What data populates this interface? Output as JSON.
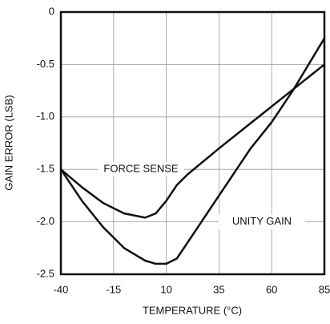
{
  "chart_data": {
    "type": "line",
    "xlabel": "TEMPERATURE (°C)",
    "ylabel": "GAIN ERROR (LSB)",
    "x": [
      -40,
      -30,
      -20,
      -10,
      0,
      5,
      10,
      15,
      20,
      35,
      50,
      60,
      70,
      85
    ],
    "series": [
      {
        "name": "FORCE SENSE",
        "color": "#111111",
        "values": [
          -1.5,
          -1.67,
          -1.82,
          -1.92,
          -1.96,
          -1.92,
          -1.8,
          -1.65,
          -1.55,
          -1.3,
          -1.06,
          -0.9,
          -0.74,
          -0.5
        ]
      },
      {
        "name": "UNITY GAIN",
        "color": "#111111",
        "values": [
          -1.5,
          -1.8,
          -2.05,
          -2.25,
          -2.37,
          -2.4,
          -2.4,
          -2.35,
          -2.2,
          -1.75,
          -1.3,
          -1.05,
          -0.75,
          -0.25
        ]
      }
    ],
    "xlim": [
      -40,
      85
    ],
    "xticks": [
      -40,
      -15,
      10,
      35,
      60,
      85
    ],
    "ylim": [
      -2.5,
      0
    ],
    "yticks": [
      0,
      -0.5,
      {
        "value": -1,
        "label": "-1.0"
      },
      -1.5,
      {
        "value": -2,
        "label": "-2.0"
      },
      -2.5
    ],
    "grid": true
  }
}
